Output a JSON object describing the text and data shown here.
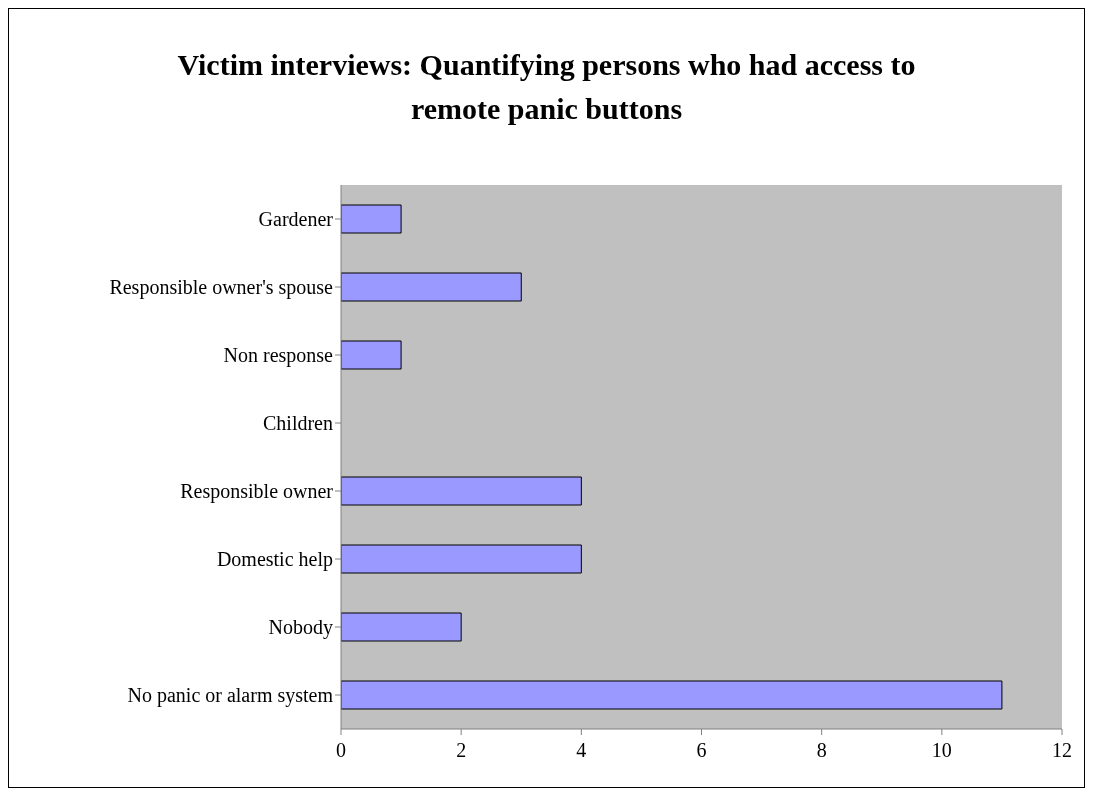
{
  "chart_data": {
    "type": "bar",
    "orientation": "horizontal",
    "title": "Victim interviews:  Quantifying persons who had access to remote panic buttons",
    "categories": [
      "Gardener",
      "Responsible owner's spouse",
      "Non response",
      "Children",
      "Responsible owner",
      "Domestic help",
      "Nobody",
      "No panic or alarm system"
    ],
    "values": [
      1,
      3,
      1,
      0,
      4,
      4,
      2,
      11
    ],
    "color": "#9999ff",
    "xlim": [
      0,
      12
    ],
    "xticks": [
      0,
      2,
      4,
      6,
      8,
      10,
      12
    ],
    "grid": false,
    "legend": false
  }
}
